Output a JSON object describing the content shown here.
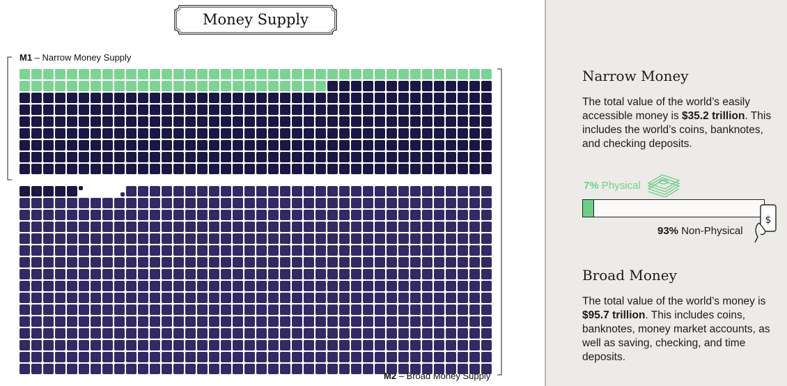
{
  "title": "Money Supply",
  "m1_label": {
    "code": "M1",
    "text": "– Narrow Money Supply"
  },
  "m2_label": {
    "code": "M2",
    "text": "– Broad Money Supply"
  },
  "chart_data": {
    "type": "waffle",
    "unit_squares": 996,
    "series": [
      {
        "name": "Physical",
        "squares": 66,
        "color": "#7dd394"
      },
      {
        "name": "Non-Physical",
        "squares": 299,
        "color": "#1b1742"
      },
      {
        "name": "Broad Money",
        "squares": 631,
        "color": "#322a63"
      }
    ],
    "groups": [
      {
        "name": "M1",
        "label": "Narrow Money Supply",
        "value_trillions": 35.2
      },
      {
        "name": "M2",
        "label": "Broad Money Supply",
        "value_trillions": 95.7
      }
    ]
  },
  "narrow": {
    "heading": "Narrow Money",
    "text_before": "The total value of the world’s easily accessible money is ",
    "amount": "$35.2 trillion",
    "text_after": ". This includes the world’s coins, banknotes, and checking deposits."
  },
  "split": {
    "physical_pct": "7%",
    "physical_label": "Physical",
    "physical_fraction": 0.07,
    "nonphysical_pct": "93%",
    "nonphysical_label": "Non-Physical",
    "physical_color": "#6ccf86"
  },
  "broad": {
    "heading": "Broad Money",
    "text_before": "The total value of the world’s money is ",
    "amount": "$95.7 trillion",
    "text_after": ". This includes coins, banknotes, money market accounts, as well as saving, checking, and time deposits."
  },
  "icons": {
    "cash": "cash-stack-icon",
    "phone": "phone-payment-icon"
  }
}
